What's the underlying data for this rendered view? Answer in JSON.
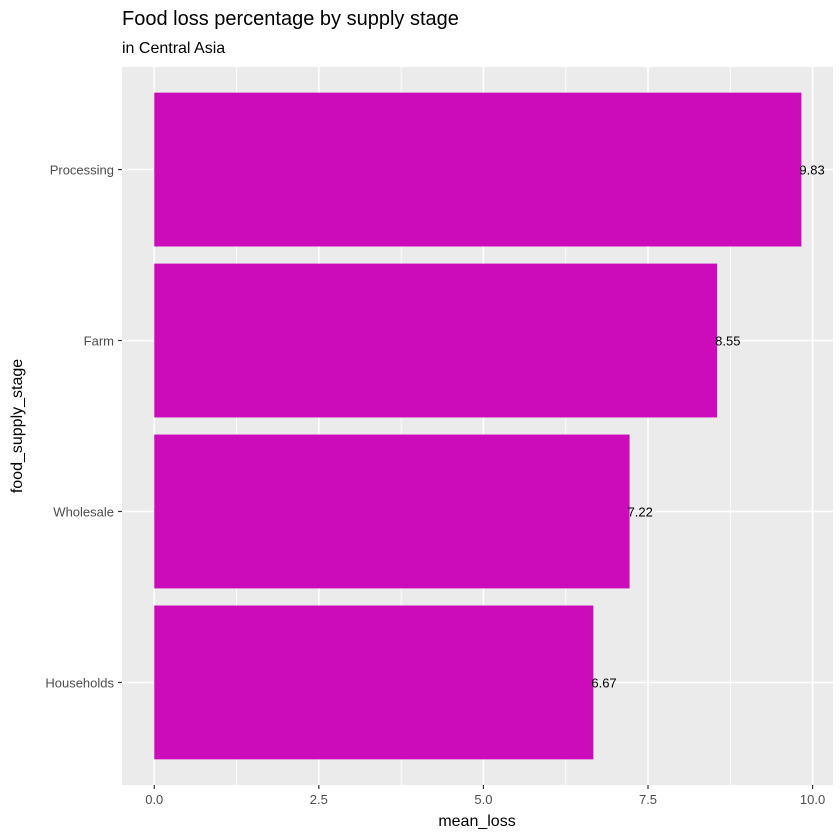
{
  "chart_data": {
    "type": "bar",
    "orientation": "horizontal",
    "title": "Food loss percentage by supply stage",
    "subtitle": "in Central Asia",
    "xlabel": "mean_loss",
    "ylabel": "food_supply_stage",
    "categories": [
      "Processing",
      "Farm",
      "Wholesale",
      "Households"
    ],
    "values": [
      9.83,
      8.55,
      7.22,
      6.67
    ],
    "data_labels": [
      "9.83",
      "8.55",
      "7.22",
      "6.67"
    ],
    "xlim": [
      -0.49,
      10.31
    ],
    "x_ticks": [
      0,
      2.5,
      5,
      7.5,
      10
    ],
    "x_tick_labels": [
      "0.0",
      "2.5",
      "5.0",
      "7.5",
      "10.0"
    ],
    "grid": true,
    "bar_color": "#CC0CBB",
    "panel_background": "#EBEBEB",
    "legend": "none"
  }
}
